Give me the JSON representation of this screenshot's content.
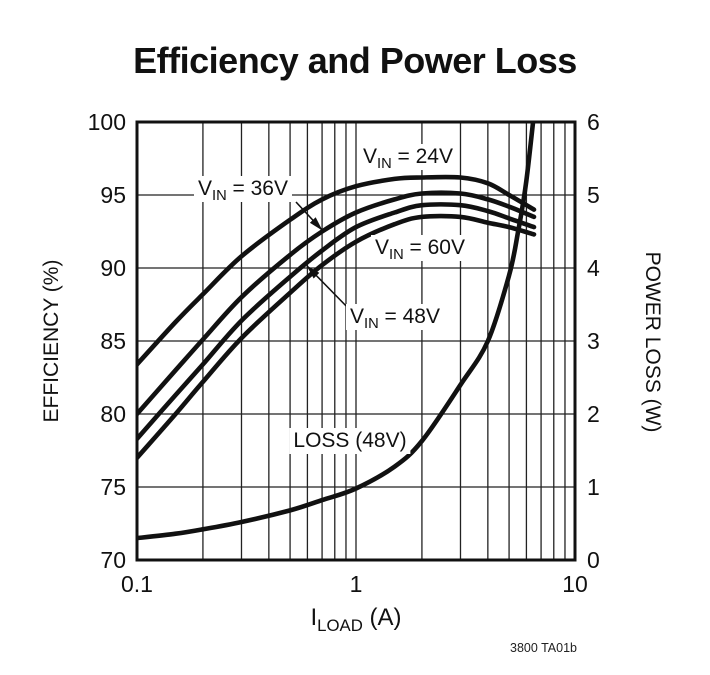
{
  "title": "Efficiency and Power Loss",
  "footnote": "3800 TA01b",
  "colors": {
    "ink": "#111111",
    "grid": "#222222",
    "background": "#ffffff"
  },
  "axes": {
    "x": {
      "label": {
        "base": "I",
        "sub": "LOAD",
        "unit": " (A)"
      },
      "scale": "log",
      "min": 0.1,
      "max": 10,
      "ticks": [
        {
          "v": 0.1,
          "t": "0.1"
        },
        {
          "v": 1,
          "t": "1"
        },
        {
          "v": 10,
          "t": "10"
        }
      ],
      "minor": [
        0.2,
        0.3,
        0.4,
        0.5,
        0.6,
        0.7,
        0.8,
        0.9,
        1,
        2,
        3,
        4,
        5,
        6,
        7,
        8,
        9
      ]
    },
    "y_left": {
      "label": "EFFICIENCY (%)",
      "min": 70,
      "max": 100,
      "ticks": [
        100,
        95,
        90,
        85,
        80,
        75,
        70
      ],
      "grid": [
        75,
        80,
        85,
        90,
        95
      ]
    },
    "y_right": {
      "label": "POWER LOSS (W)",
      "min": 0,
      "max": 6,
      "ticks": [
        6,
        5,
        4,
        3,
        2,
        1,
        0
      ]
    }
  },
  "chart_data": {
    "type": "line",
    "title": "Efficiency and Power Loss",
    "xlabel": "ILOAD (A)",
    "ylabel_left": "EFFICIENCY (%)",
    "ylabel_right": "POWER LOSS (W)",
    "x_scale": "log",
    "xlim": [
      0.1,
      10
    ],
    "ylim_left": [
      70,
      100
    ],
    "ylim_right": [
      0,
      6
    ],
    "grid": "on",
    "series": [
      {
        "name": "VIN = 24V",
        "axis": "left",
        "x": [
          0.1,
          0.15,
          0.2,
          0.3,
          0.5,
          0.7,
          1,
          1.5,
          2,
          3,
          4,
          5,
          6.5
        ],
        "y": [
          83.4,
          86.3,
          88.2,
          90.8,
          93.3,
          94.7,
          95.6,
          96.1,
          96.2,
          96.2,
          95.8,
          95.0,
          94.0
        ]
      },
      {
        "name": "VIN = 36V",
        "axis": "left",
        "x": [
          0.1,
          0.15,
          0.2,
          0.3,
          0.5,
          0.7,
          1,
          1.5,
          2,
          3,
          4,
          5,
          6.5
        ],
        "y": [
          80.0,
          83.0,
          85.1,
          88.0,
          90.9,
          92.5,
          93.8,
          94.7,
          95.1,
          95.1,
          94.7,
          94.2,
          93.5
        ]
      },
      {
        "name": "VIN = 48V",
        "axis": "left",
        "x": [
          0.1,
          0.15,
          0.2,
          0.3,
          0.5,
          0.7,
          1,
          1.5,
          2,
          3,
          4,
          5,
          6.5
        ],
        "y": [
          78.3,
          81.3,
          83.4,
          86.4,
          89.4,
          91.2,
          92.8,
          93.8,
          94.3,
          94.3,
          93.9,
          93.4,
          92.8
        ]
      },
      {
        "name": "VIN = 60V",
        "axis": "left",
        "x": [
          0.1,
          0.15,
          0.2,
          0.3,
          0.5,
          0.7,
          1,
          1.5,
          2,
          3,
          4,
          5,
          6.5
        ],
        "y": [
          77.0,
          80.0,
          82.2,
          85.2,
          88.3,
          90.2,
          91.8,
          93.0,
          93.5,
          93.5,
          93.1,
          92.8,
          92.3
        ]
      },
      {
        "name": "LOSS (48V)",
        "axis": "right",
        "x": [
          0.1,
          0.15,
          0.2,
          0.3,
          0.5,
          0.7,
          1,
          1.5,
          2,
          3,
          4,
          5,
          5.5,
          6,
          6.65
        ],
        "y": [
          0.3,
          0.36,
          0.42,
          0.52,
          0.68,
          0.82,
          0.98,
          1.28,
          1.63,
          2.4,
          3.0,
          3.9,
          4.5,
          5.2,
          6.4
        ]
      }
    ]
  },
  "labels": {
    "vin24": {
      "base": "V",
      "sub": "IN",
      "rest": " = 24V"
    },
    "vin36": {
      "base": "V",
      "sub": "IN",
      "rest": " = 36V"
    },
    "vin60": {
      "base": "V",
      "sub": "IN",
      "rest": " = 60V"
    },
    "vin48": {
      "base": "V",
      "sub": "IN",
      "rest": " = 48V"
    },
    "loss": "LOSS (48V)"
  }
}
